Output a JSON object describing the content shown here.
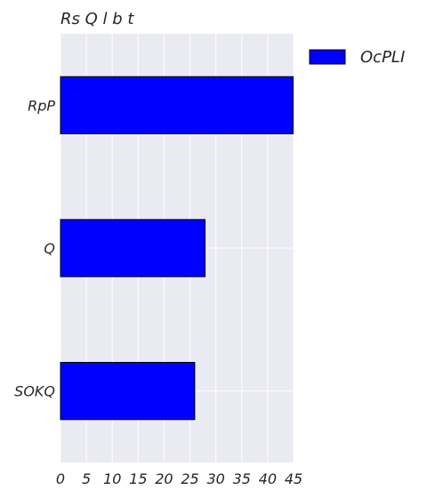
{
  "chart_data": {
    "type": "bar",
    "orientation": "horizontal",
    "title": "Rs Q l b t",
    "xlabel": "",
    "ylabel": "",
    "categories": [
      "RpP",
      "Q",
      "SOKQ"
    ],
    "series": [
      {
        "name": "OcPLI",
        "values": [
          45,
          28,
          26
        ]
      }
    ],
    "xlim": [
      0,
      45
    ],
    "xticks": [
      0,
      5,
      10,
      15,
      20,
      25,
      30,
      35,
      40,
      45
    ],
    "grid": true,
    "legend": "upper-right outside",
    "colors": {
      "bar": "#0000ff",
      "edge": "#000000",
      "plot_bg": "#eaeaf2",
      "grid": "#ffffff"
    }
  }
}
